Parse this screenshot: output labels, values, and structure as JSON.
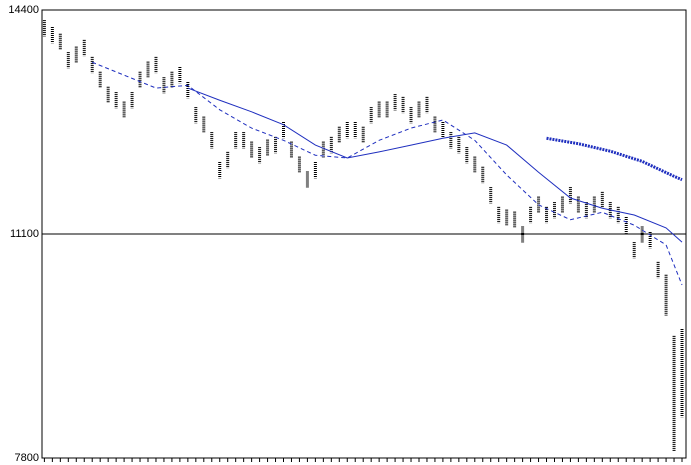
{
  "chart_data": {
    "type": "ohlc",
    "ylim": [
      7800,
      14400
    ],
    "yticks": [
      7800,
      11100,
      14400
    ],
    "xlim": [
      -0.3,
      80.5
    ],
    "grid": true,
    "bars": {
      "color": "#000000",
      "high": [
        14250,
        14150,
        14050,
        13780,
        13860,
        13960,
        13710,
        13490,
        13270,
        13190,
        13050,
        13190,
        13490,
        13640,
        13710,
        13410,
        13490,
        13560,
        13340,
        12970,
        12830,
        12600,
        12160,
        12310,
        12600,
        12600,
        12460,
        12380,
        12490,
        12530,
        12750,
        12460,
        12240,
        12020,
        12160,
        12460,
        12530,
        12680,
        12750,
        12750,
        12680,
        12970,
        13050,
        13050,
        13160,
        13120,
        12970,
        13050,
        13120,
        12830,
        12750,
        12600,
        12530,
        12380,
        12240,
        12090,
        11790,
        11500,
        11460,
        11430,
        11210,
        11500,
        11650,
        11500,
        11570,
        11650,
        11790,
        11650,
        11570,
        11650,
        11720,
        11570,
        11500,
        11350,
        10980,
        11210,
        11130,
        10690,
        10500,
        9600,
        9700
      ],
      "low": [
        14010,
        13910,
        13810,
        13540,
        13620,
        13720,
        13470,
        13250,
        13030,
        12950,
        12810,
        12950,
        13250,
        13400,
        13470,
        13170,
        13250,
        13320,
        13100,
        12730,
        12590,
        12360,
        11920,
        12070,
        12360,
        12360,
        12220,
        12140,
        12250,
        12290,
        12510,
        12220,
        12000,
        11780,
        11920,
        12220,
        12290,
        12440,
        12510,
        12510,
        12440,
        12730,
        12810,
        12810,
        12920,
        12880,
        12730,
        12810,
        12880,
        12590,
        12510,
        12360,
        12290,
        12140,
        12000,
        11850,
        11550,
        11260,
        11220,
        11190,
        10970,
        11260,
        11410,
        11260,
        11330,
        11410,
        11550,
        11410,
        11330,
        11410,
        11480,
        11330,
        11260,
        11110,
        10740,
        10970,
        10890,
        10450,
        9900,
        7900,
        8400
      ]
    },
    "series": [
      {
        "color": "#1f2fbf",
        "style": "dashed",
        "x": [
          6,
          10,
          14,
          18,
          22,
          26,
          30,
          34,
          38,
          42,
          46,
          50,
          54,
          58,
          62,
          66,
          70,
          74,
          78,
          80
        ],
        "values": [
          13630,
          13440,
          13250,
          13290,
          12930,
          12660,
          12480,
          12260,
          12220,
          12480,
          12660,
          12780,
          12480,
          11970,
          11530,
          11310,
          11420,
          11230,
          10940,
          10350
        ]
      },
      {
        "color": "#1f2fbf",
        "style": "solid",
        "x": [
          18,
          22,
          26,
          30,
          34,
          38,
          42,
          46,
          50,
          54,
          58,
          62,
          66,
          70,
          74,
          78,
          80
        ],
        "values": [
          13250,
          13070,
          12900,
          12710,
          12410,
          12220,
          12310,
          12410,
          12510,
          12590,
          12410,
          12010,
          11630,
          11480,
          11380,
          11190,
          10980
        ]
      },
      {
        "color": "#1f2fbf",
        "style": "thick",
        "x": [
          63,
          67,
          71,
          75,
          79,
          80
        ],
        "values": [
          12510,
          12430,
          12320,
          12170,
          11950,
          11900
        ]
      }
    ]
  }
}
